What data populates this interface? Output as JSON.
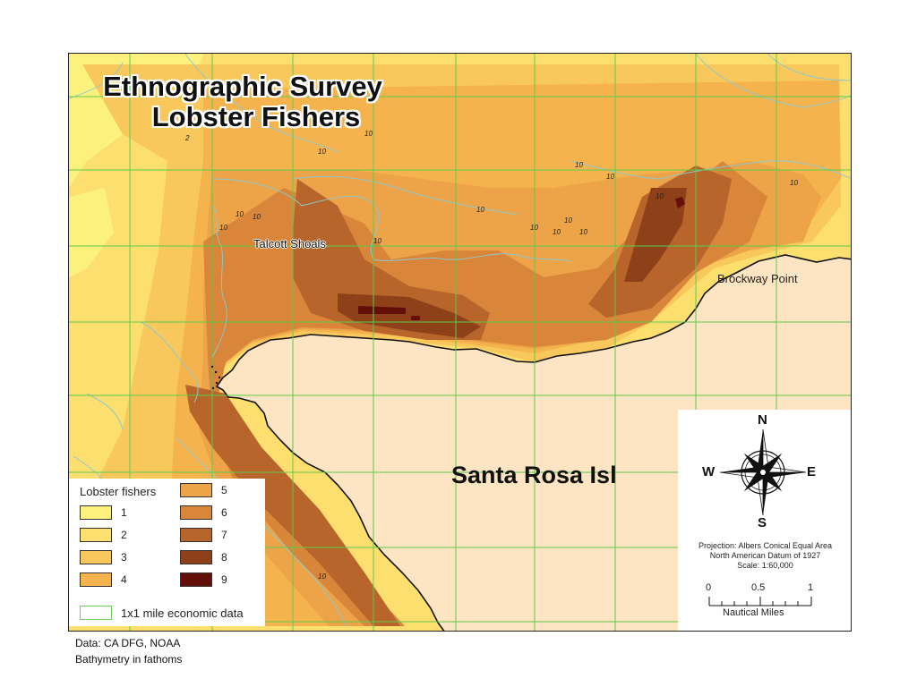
{
  "map": {
    "title_line1": "Ethnographic Survey",
    "title_line2": "Lobster Fishers",
    "island_label": "Santa Rosa Isl",
    "place_labels": {
      "talcott": "Talcott Shoals",
      "brockway": "Brockway Point"
    },
    "depth_label": "10",
    "depth_label_edge": "2",
    "colors": {
      "ocean": "#ffffff",
      "land": "#fde5c3",
      "contour": "#8ec8cc",
      "grid": "#5ccc4a",
      "coast": "#111111"
    }
  },
  "legend": {
    "title": "Lobster fishers",
    "classes": [
      {
        "label": "1",
        "color": "#fdf17e"
      },
      {
        "label": "2",
        "color": "#fcdf6e"
      },
      {
        "label": "3",
        "color": "#f9c85c"
      },
      {
        "label": "4",
        "color": "#f5b34e"
      },
      {
        "label": "5",
        "color": "#eda348"
      },
      {
        "label": "6",
        "color": "#d9853a"
      },
      {
        "label": "7",
        "color": "#b8652c"
      },
      {
        "label": "8",
        "color": "#8e4019"
      },
      {
        "label": "9",
        "color": "#650f0a"
      }
    ],
    "grid_label": "1x1 mile economic data"
  },
  "compass": {
    "north": "N",
    "south": "S",
    "east": "E",
    "west": "W"
  },
  "projection": {
    "line1": "Projection: Albers Conical Equal Area",
    "line2": "North American Datum of 1927",
    "line3": "Scale: 1:60,000"
  },
  "scale_bar": {
    "ticks": [
      "0",
      "0.5",
      "1"
    ],
    "units": "Nautical Miles"
  },
  "footer": {
    "line1": "Data: CA DFG, NOAA",
    "line2": "Bathymetry in fathoms"
  }
}
